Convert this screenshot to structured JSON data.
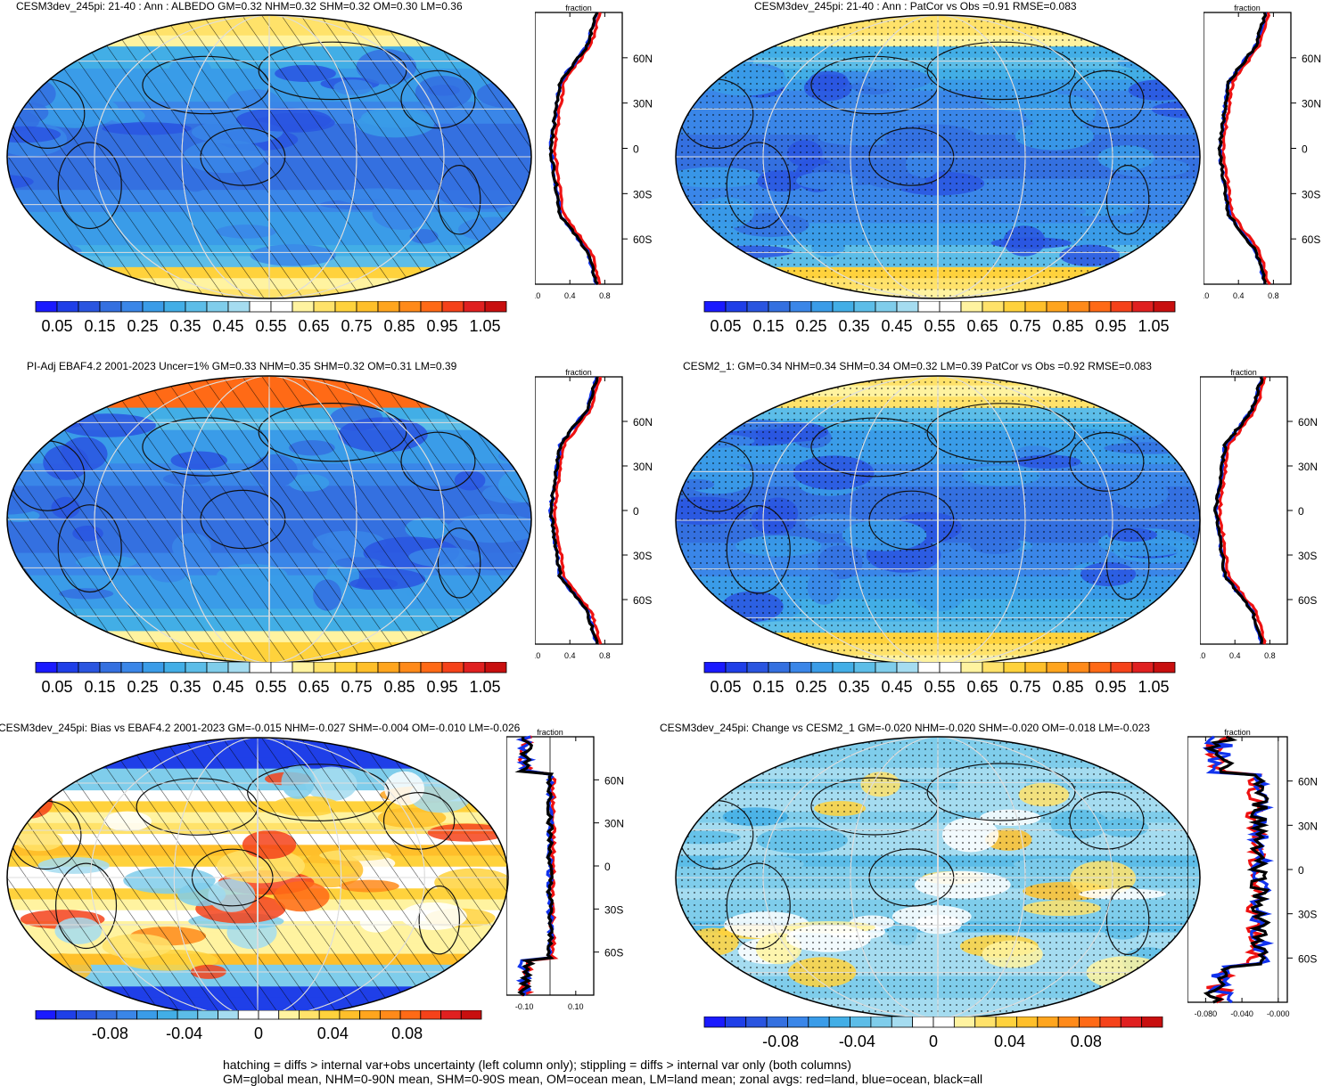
{
  "panels": [
    {
      "id": "p1",
      "kind": "abs",
      "title": "CESM3dev_245pi: 21-40 : Ann : ALBEDO GM=0.32 NHM=0.32 SHM=0.32 OM=0.30 LM=0.36",
      "overlay": "hatch",
      "xlim": [
        0,
        1.0
      ],
      "xticks": [
        "0.0",
        "0.4",
        "0.8"
      ],
      "ylabels": [
        "60N",
        "30N",
        "0",
        "30S",
        "60S"
      ],
      "zonal_label": "fraction"
    },
    {
      "id": "p2",
      "kind": "abs",
      "title": "CESM3dev_245pi: 21-40 : Ann : PatCor vs Obs =0.91 RMSE=0.083",
      "overlay": "stipple",
      "xlim": [
        0,
        1.0
      ],
      "xticks": [
        "0.0",
        "0.4",
        "0.8"
      ],
      "ylabels": [
        "60N",
        "30N",
        "0",
        "30S",
        "60S"
      ],
      "zonal_label": "fraction"
    },
    {
      "id": "p3",
      "kind": "abs",
      "title": "PI-Adj EBAF4.2 2001-2023 Uncer=1% GM=0.33 NHM=0.35 SHM=0.32 OM=0.31 LM=0.39",
      "overlay": "hatch",
      "xlim": [
        0,
        1.0
      ],
      "xticks": [
        "0.0",
        "0.4",
        "0.8"
      ],
      "ylabels": [
        "60N",
        "30N",
        "0",
        "30S",
        "60S"
      ],
      "zonal_label": "fraction"
    },
    {
      "id": "p4",
      "kind": "abs",
      "title": "CESM2_1: GM=0.34 NHM=0.34 SHM=0.34 OM=0.32 LM=0.39 PatCor vs Obs =0.92 RMSE=0.083",
      "overlay": "stipple",
      "xlim": [
        0,
        1.0
      ],
      "xticks": [
        "0.0",
        "0.4",
        "0.8"
      ],
      "ylabels": [
        "60N",
        "30N",
        "0",
        "30S",
        "60S"
      ],
      "zonal_label": "fraction"
    },
    {
      "id": "p5",
      "kind": "diff",
      "title": "CESM3dev_245pi: Bias vs EBAF4.2 2001-2023 GM=-0.015 NHM=-0.027 SHM=-0.004 OM=-0.010 LM=-0.026",
      "overlay": "hatch",
      "xlim": [
        -0.17,
        0.17
      ],
      "xticks": [
        "-0.10",
        "0.10"
      ],
      "ylabels": [
        "60N",
        "30N",
        "0",
        "30S",
        "60S"
      ],
      "zonal_label": "fraction"
    },
    {
      "id": "p6",
      "kind": "diff",
      "title": "CESM3dev_245pi: Change vs CESM2_1 GM=-0.020 NHM=-0.020 SHM=-0.020 OM=-0.018 LM=-0.023",
      "overlay": "stipple",
      "xlim": [
        -0.1,
        0.01
      ],
      "xticks": [
        "-0.080",
        "-0.040",
        "-0.000"
      ],
      "ylabels": [
        "60N",
        "30N",
        "0",
        "30S",
        "60S"
      ],
      "zonal_label": "fraction"
    }
  ],
  "colorbars": {
    "abs": {
      "labels": [
        "0.05",
        "0.15",
        "0.25",
        "0.35",
        "0.45",
        "0.55",
        "0.65",
        "0.75",
        "0.85",
        "0.95",
        "1.05"
      ],
      "range": [
        0.0,
        1.1
      ],
      "nbins": 22
    },
    "diff": {
      "labels": [
        "-0.08",
        "-0.04",
        "0",
        "0.04",
        "0.08"
      ],
      "range": [
        -0.12,
        0.12
      ],
      "nbins": 22
    }
  },
  "palette": [
    "#1a1aff",
    "#1f3fe8",
    "#2a55e0",
    "#3470e0",
    "#3a86e8",
    "#3a9ce8",
    "#42aee6",
    "#5cbde8",
    "#7fcdeb",
    "#a5dcf0",
    "#ffffff",
    "#ffffff",
    "#fff3a0",
    "#ffe26a",
    "#ffd23c",
    "#ffbf2a",
    "#ffa51e",
    "#ff8a1a",
    "#ff6a16",
    "#f5421a",
    "#e02020",
    "#c80f0f"
  ],
  "chart_data": {
    "type": "map-with-zonal-means",
    "legend": [
      {
        "name": "land",
        "color": "#ee1111"
      },
      {
        "name": "ocean",
        "color": "#1133ee"
      },
      {
        "name": "all",
        "color": "#000000"
      }
    ],
    "notes": [
      "hatching = diffs > internal var+obs uncertainty (left column only); stippling = diffs > internal var only (both columns)",
      "GM=global mean, NHM=0-90N mean, SHM=0-90S mean, OM=ocean mean, LM=land mean; zonal avgs: red=land, blue=ocean, black=all"
    ]
  }
}
